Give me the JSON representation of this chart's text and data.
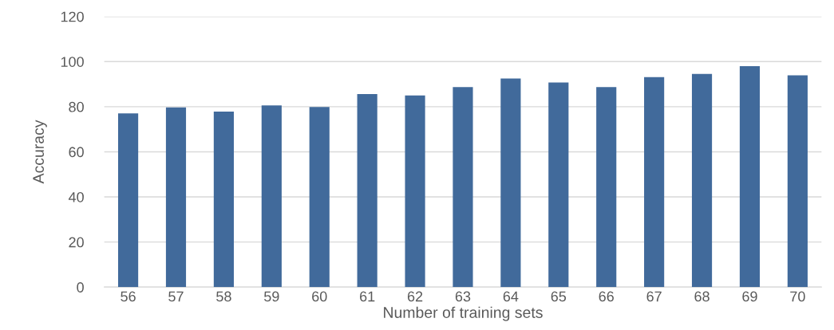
{
  "chart_data": {
    "type": "bar",
    "xlabel": "Number of training sets",
    "ylabel": "Accuracy",
    "categories": [
      "56",
      "57",
      "58",
      "59",
      "60",
      "61",
      "62",
      "63",
      "64",
      "65",
      "66",
      "67",
      "68",
      "69",
      "70"
    ],
    "values": [
      77.0,
      79.7,
      77.8,
      80.6,
      79.9,
      85.6,
      85.0,
      88.7,
      92.5,
      90.7,
      88.7,
      93.1,
      94.5,
      98.0,
      93.9
    ],
    "color": "#416a9b",
    "ylim": [
      0,
      120
    ],
    "yticks": [
      0,
      20,
      40,
      60,
      80,
      100,
      120
    ],
    "grid": "y"
  }
}
